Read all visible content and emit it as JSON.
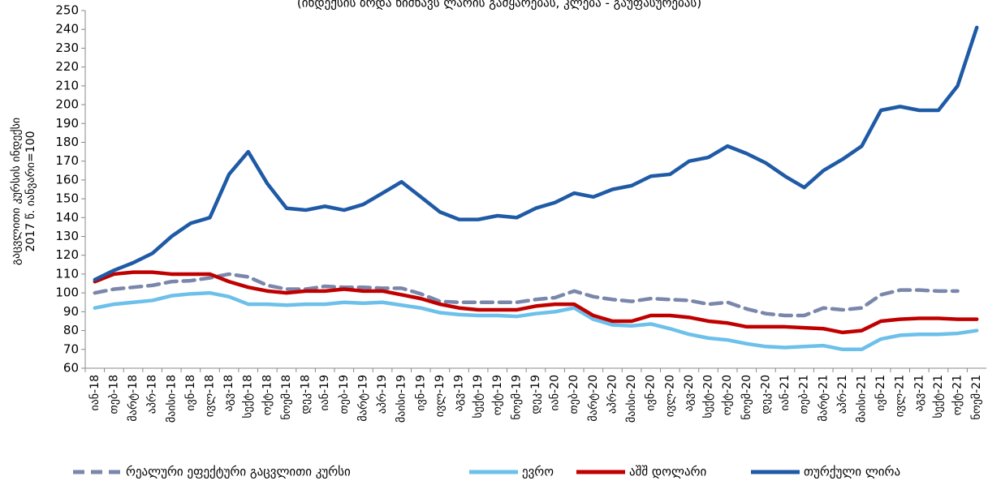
{
  "chart_data": {
    "type": "line",
    "subtitle": "(ინდექსის ზრდა ნიშნავს ლარის გამყარებას, კლება - გაუფასურებას)",
    "ylabel": [
      "გაცვლითი კურსის ინდექსი",
      "2017 წ. იანვარი=100"
    ],
    "categories": [
      "იან-18",
      "თებ-18",
      "მარტ-18",
      "აპრ-18",
      "მაისი-18",
      "ივნ-18",
      "ივლ-18",
      "აგვ-18",
      "სექტ-18",
      "ოქტ-18",
      "ნოემ-18",
      "დეკ-18",
      "იან-19",
      "თებ-19",
      "მარტ-19",
      "აპრ-19",
      "მაისი-19",
      "ივნ-19",
      "ივლ-19",
      "აგვ-19",
      "სექტ-19",
      "ოქტ-19",
      "ნოემ-19",
      "დეკ-19",
      "იან-20",
      "თებ-20",
      "მარტ-20",
      "აპრ-20",
      "მაისი-20",
      "ივნ-20",
      "ივლ-20",
      "აგვ-20",
      "სექტ-20",
      "ოქტ-20",
      "ნოემ-20",
      "დეკ-20",
      "იან-21",
      "თებ-21",
      "მარტ-21",
      "აპრ-21",
      "მაისი-21",
      "ივნ-21",
      "ივლ-21",
      "აგვ-21",
      "სექტ-21",
      "ოქტ-21",
      "ნოემ-21"
    ],
    "series": [
      {
        "name": "რეალური ეფექტური გაცვლითი კურსი",
        "color": "#7a87ab",
        "dashed": true,
        "values": [
          100,
          102,
          103,
          104,
          106,
          106.5,
          108,
          110,
          108.5,
          104,
          102,
          102,
          103.5,
          103,
          103,
          102.5,
          102.5,
          99.5,
          95.5,
          95,
          95,
          95,
          95,
          96.5,
          97.5,
          101,
          98,
          96.5,
          95.5,
          97,
          96.5,
          96,
          94,
          95,
          91.5,
          89,
          88,
          88,
          92,
          91,
          92,
          99,
          101.5,
          101.5,
          101,
          101,
          null
        ]
      },
      {
        "name": "ევრო",
        "color": "#6cc0ea",
        "values": [
          92,
          94,
          95,
          96,
          98.5,
          99.5,
          100,
          98,
          94,
          94,
          93.5,
          94,
          94,
          95,
          94.5,
          95,
          93.5,
          92,
          89.5,
          88.5,
          88,
          88,
          87.5,
          89,
          90,
          92,
          86,
          83,
          82.5,
          83.5,
          81,
          78,
          76,
          75,
          73,
          71.5,
          71,
          71.5,
          72,
          70,
          70,
          75.5,
          77.5,
          78,
          78,
          78.5,
          80
        ]
      },
      {
        "name": "აშშ დოლარი",
        "color": "#c00000",
        "values": [
          106,
          110,
          111,
          111,
          110,
          110,
          110,
          106,
          103,
          101,
          100,
          101,
          101,
          102,
          101,
          101,
          99,
          97,
          94,
          92,
          91,
          91,
          91,
          93,
          94,
          94,
          88,
          85,
          85,
          88,
          88,
          87,
          85,
          84,
          82,
          82,
          82,
          81.5,
          81,
          79,
          80,
          85,
          86,
          86.5,
          86.5,
          86,
          86
        ]
      },
      {
        "name": "თურქული ლირა",
        "color": "#1f5aa6",
        "values": [
          107,
          112,
          116,
          121,
          130,
          137,
          140,
          163,
          175,
          158,
          145,
          144,
          146,
          144,
          147,
          153,
          159,
          151,
          143,
          139,
          139,
          141,
          140,
          145,
          148,
          153,
          151,
          155,
          157,
          162,
          163,
          170,
          172,
          178,
          174,
          169,
          162,
          156,
          165,
          171,
          178,
          197,
          199,
          197,
          197,
          210,
          241
        ]
      }
    ],
    "ylim": [
      60,
      250
    ],
    "yticks": [
      60,
      70,
      80,
      90,
      100,
      110,
      120,
      130,
      140,
      150,
      160,
      170,
      180,
      190,
      200,
      210,
      220,
      230,
      240,
      250
    ],
    "grid": false
  }
}
